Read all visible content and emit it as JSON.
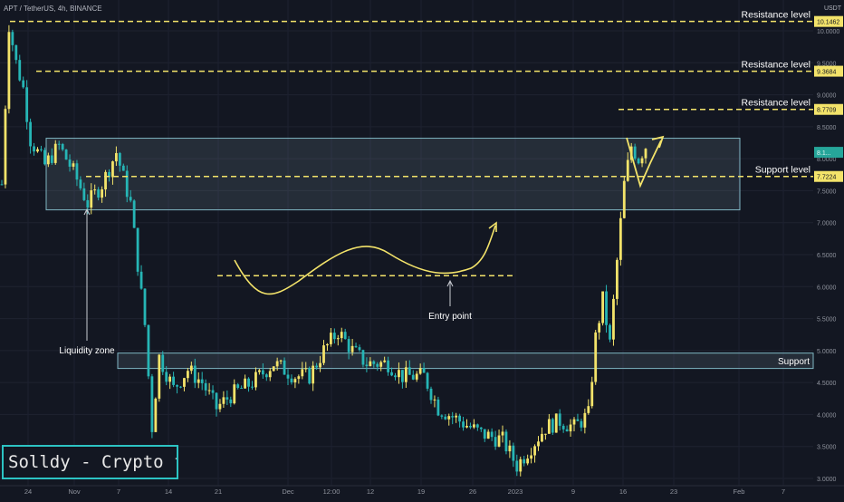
{
  "header": {
    "symbol": "APT / TetherUS, 4h, BINANCE",
    "currency": "USDT"
  },
  "brand": "Solldy - Crypto for U",
  "chart_data": {
    "type": "candlestick",
    "title": "",
    "ylim": [
      3.0,
      10.3
    ],
    "y_ticks": [
      "3.0000",
      "3.5000",
      "4.0000",
      "4.5000",
      "5.0000",
      "5.5000",
      "6.0000",
      "6.5000",
      "7.0000",
      "7.5000",
      "8.0000",
      "8.5000",
      "9.0000",
      "9.5000",
      "10.0000"
    ],
    "x_ticks": [
      "24",
      "Nov",
      "7",
      "14",
      "21",
      "Dec",
      "12:00",
      "12",
      "19",
      "26",
      "2023",
      "9",
      "16",
      "23",
      "Feb",
      "7"
    ],
    "price_path": [
      [
        "Oct 19",
        7.6
      ],
      [
        "Oct 20",
        10.1
      ],
      [
        "Oct 21",
        9.5
      ],
      [
        "Oct 22",
        9.1
      ],
      [
        "Oct 23",
        8.3
      ],
      [
        "Oct 25",
        7.9
      ],
      [
        "Oct 27",
        8.2
      ],
      [
        "Oct 29",
        7.8
      ],
      [
        "Oct 31",
        7.3
      ],
      [
        "Nov 2",
        7.6
      ],
      [
        "Nov 4",
        8.1
      ],
      [
        "Nov 6",
        7.3
      ],
      [
        "Nov 8",
        5.4
      ],
      [
        "Nov 9",
        3.8
      ],
      [
        "Nov 10",
        4.9
      ],
      [
        "Nov 12",
        4.4
      ],
      [
        "Nov 14",
        4.7
      ],
      [
        "Nov 16",
        4.5
      ],
      [
        "Nov 18",
        4.1
      ],
      [
        "Nov 20",
        4.3
      ],
      [
        "Nov 23",
        4.5
      ],
      [
        "Nov 26",
        4.8
      ],
      [
        "Nov 29",
        4.6
      ],
      [
        "Dec 1",
        4.6
      ],
      [
        "Dec 3",
        5.0
      ],
      [
        "Dec 5",
        5.3
      ],
      [
        "Dec 7",
        5.0
      ],
      [
        "Dec 9",
        4.8
      ],
      [
        "Dec 12",
        4.8
      ],
      [
        "Dec 14",
        4.6
      ],
      [
        "Dec 17",
        4.6
      ],
      [
        "Dec 19",
        4.1
      ],
      [
        "Dec 22",
        3.9
      ],
      [
        "Dec 25",
        3.7
      ],
      [
        "Dec 28",
        3.6
      ],
      [
        "Dec 30",
        3.2
      ],
      [
        "Jan 1",
        3.5
      ],
      [
        "Jan 3",
        3.8
      ],
      [
        "Jan 5",
        3.9
      ],
      [
        "Jan 7",
        3.8
      ],
      [
        "Jan 9",
        4.0
      ],
      [
        "Jan 10",
        5.2
      ],
      [
        "Jan 11",
        5.8
      ],
      [
        "Jan 12",
        5.1
      ],
      [
        "Jan 13",
        6.4
      ],
      [
        "Jan 14",
        7.6
      ],
      [
        "Jan 15",
        8.2
      ],
      [
        "Jan 16",
        8.0
      ],
      [
        "Jan 17",
        8.2
      ]
    ],
    "levels": [
      {
        "label": "Resistance level",
        "value": 10.1462,
        "tag": "10.1462"
      },
      {
        "label": "Resistance level",
        "value": 9.3684,
        "tag": "9.3684"
      },
      {
        "label": "Resistance level",
        "value": 8.7709,
        "tag": "8.7709"
      },
      {
        "label": "Support level",
        "value": 7.7224,
        "tag": "7.7224"
      }
    ],
    "zones": [
      {
        "name": "resistance-zone",
        "from": 7.2,
        "to": 8.32,
        "label": ""
      },
      {
        "name": "support-zone",
        "from": 4.72,
        "to": 4.96,
        "label": "Support"
      }
    ],
    "current_price_tag": "8.1...",
    "annotations": {
      "liquidity": "Liquidity zone",
      "entry": "Entry point",
      "entry_level": 6.17
    }
  }
}
